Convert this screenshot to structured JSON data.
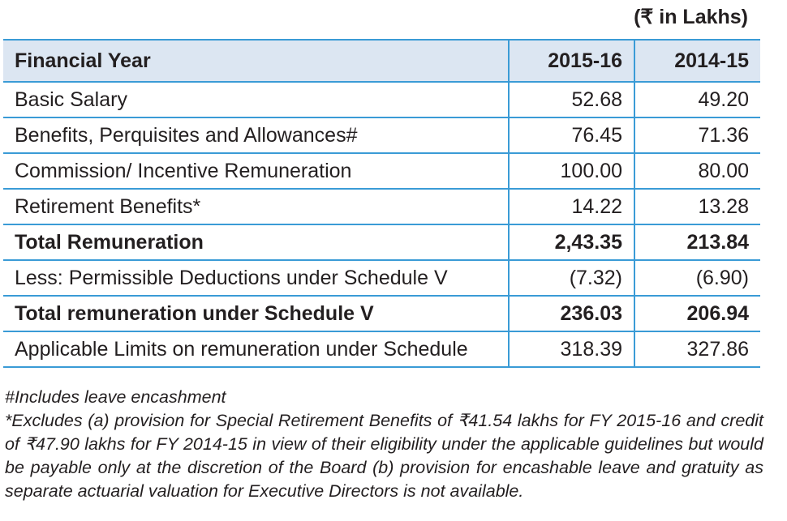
{
  "unit_note": "(₹ in Lakhs)",
  "table": {
    "headers": [
      "Financial Year",
      "2015-16",
      "2014-15"
    ],
    "rows": [
      {
        "label": "Basic Salary",
        "v1": "52.68",
        "v2": "49.20",
        "bold": false
      },
      {
        "label": "Benefits, Perquisites and Allowances#",
        "v1": "76.45",
        "v2": "71.36",
        "bold": false
      },
      {
        "label": "Commission/ Incentive Remuneration",
        "v1": "100.00",
        "v2": "80.00",
        "bold": false
      },
      {
        "label": "Retirement Benefits*",
        "v1": "14.22",
        "v2": "13.28",
        "bold": false
      },
      {
        "label": "Total Remuneration",
        "v1": "2,43.35",
        "v2": "213.84",
        "bold": true
      },
      {
        "label": "Less: Permissible Deductions under Schedule V",
        "v1": "(7.32)",
        "v2": "(6.90)",
        "bold": false
      },
      {
        "label": "Total remuneration under Schedule V",
        "v1": "236.03",
        "v2": "206.94",
        "bold": true
      },
      {
        "label": "Applicable Limits on remuneration under Schedule",
        "v1": "318.39",
        "v2": "327.86",
        "bold": false
      }
    ]
  },
  "footnotes": {
    "note1": "#Includes leave encashment",
    "note2": "*Excludes (a) provision for Special Retirement Benefits of ₹41.54 lakhs for FY 2015-16 and credit of ₹47.90 lakhs for FY 2014-15 in view of their eligibility under the applicable guidelines but would be payable only at the discretion of the Board (b) provision for encashable leave and gratuity as separate actuarial valuation for Executive Directors is not available."
  }
}
